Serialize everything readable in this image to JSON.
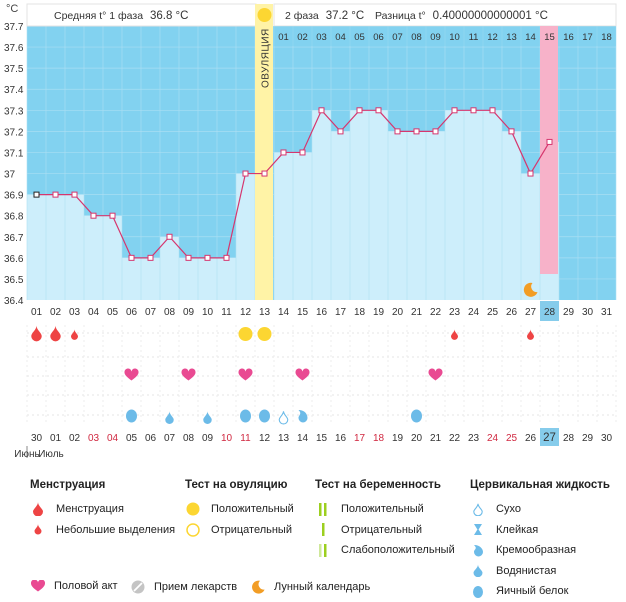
{
  "header": {
    "avg_phase1_label": "Средняя t° 1 фаза",
    "avg_phase1_value": "36.8 °C",
    "phase2_label": "2 фаза",
    "phase2_value": "37.2 °C",
    "diff_label": "Разница t°",
    "diff_value": "0.40000000000001 °C",
    "unit": "°C",
    "ovulation_label": "ОВУЛЯЦИЯ"
  },
  "chart_data": {
    "type": "line",
    "title": "Базальная температура",
    "ylabel": "°C",
    "ylim": [
      36.4,
      37.7
    ],
    "y_ticks": [
      "36.4",
      "36.5",
      "36.6",
      "36.7",
      "36.8",
      "36.9",
      "37",
      "37.1",
      "37.2",
      "37.3",
      "37.4",
      "37.5",
      "37.6",
      "37.7"
    ],
    "cycle_days": [
      "01",
      "02",
      "03",
      "04",
      "05",
      "06",
      "07",
      "08",
      "09",
      "10",
      "11",
      "12",
      "13",
      "14",
      "15",
      "16",
      "17",
      "18",
      "19",
      "20",
      "21",
      "22",
      "23",
      "24",
      "25",
      "26",
      "27",
      "28",
      "29",
      "30",
      "31"
    ],
    "temperatures": [
      36.9,
      36.9,
      36.9,
      36.8,
      36.8,
      36.6,
      36.6,
      36.7,
      36.6,
      36.6,
      36.6,
      37.0,
      37.0,
      37.1,
      37.1,
      37.3,
      37.2,
      37.3,
      37.3,
      37.2,
      37.2,
      37.2,
      37.3,
      37.3,
      37.3,
      37.2,
      37.0,
      37.15
    ],
    "phase2_days": [
      "01",
      "02",
      "03",
      "04",
      "05",
      "06",
      "07",
      "08",
      "09",
      "10",
      "11",
      "12",
      "13",
      "14",
      "15",
      "16",
      "17",
      "18"
    ],
    "ovulation_day": 13,
    "phase2_highlight_index": 15,
    "current_day": "28",
    "dates": [
      "30",
      "01",
      "02",
      "03",
      "04",
      "05",
      "06",
      "07",
      "08",
      "09",
      "10",
      "11",
      "12",
      "13",
      "14",
      "15",
      "16",
      "17",
      "18",
      "19",
      "20",
      "21",
      "22",
      "23",
      "24",
      "25",
      "26",
      "27",
      "28",
      "29",
      "30"
    ],
    "weekend_date_indices": [
      3,
      4,
      10,
      11,
      17,
      18,
      24,
      25
    ],
    "current_date_index": 27,
    "month_labels": [
      "Июнь",
      "Июль"
    ],
    "markers": {
      "moon_day": 27,
      "menstruation_days": [
        1,
        2
      ],
      "spotting_days": [
        3,
        23,
        27
      ],
      "ovulation_test_positive_days": [
        12,
        13
      ],
      "intercourse_days": [
        6,
        9,
        12,
        15,
        22
      ],
      "mucus": [
        {
          "day": 6,
          "type": "eggwhite"
        },
        {
          "day": 8,
          "type": "watery"
        },
        {
          "day": 10,
          "type": "watery"
        },
        {
          "day": 12,
          "type": "eggwhite"
        },
        {
          "day": 13,
          "type": "eggwhite"
        },
        {
          "day": 14,
          "type": "dry"
        },
        {
          "day": 15,
          "type": "creamy"
        },
        {
          "day": 21,
          "type": "eggwhite"
        }
      ]
    }
  },
  "legend": {
    "menstruation": {
      "title": "Менструация",
      "items": [
        "Менструация",
        "Небольшие выделения"
      ]
    },
    "ovulation_test": {
      "title": "Тест на овуляцию",
      "items": [
        "Положительный",
        "Отрицательный"
      ]
    },
    "pregnancy_test": {
      "title": "Тест на беременность",
      "items": [
        "Положительный",
        "Отрицательный",
        "Слабоположительный"
      ]
    },
    "cervical": {
      "title": "Цервикальная жидкость",
      "items": [
        "Сухо",
        "Клейкая",
        "Кремообразная",
        "Водянистая",
        "Яичный белок"
      ]
    },
    "bottom": [
      "Половой акт",
      "Прием лекарств",
      "Лунный календарь"
    ]
  },
  "colors": {
    "sky": "#82d2f0",
    "bar": "#cdeefb",
    "line": "#d6366e",
    "ovulation": "#fff3a6",
    "highlight": "#f7b2c9",
    "drop": "#ee4444",
    "heart": "#e94a92",
    "mucus": "#6cbbe8",
    "sun": "#fcd632",
    "moon": "#f29d25",
    "weekend": "#d02840",
    "green": "#9ccf1f"
  }
}
